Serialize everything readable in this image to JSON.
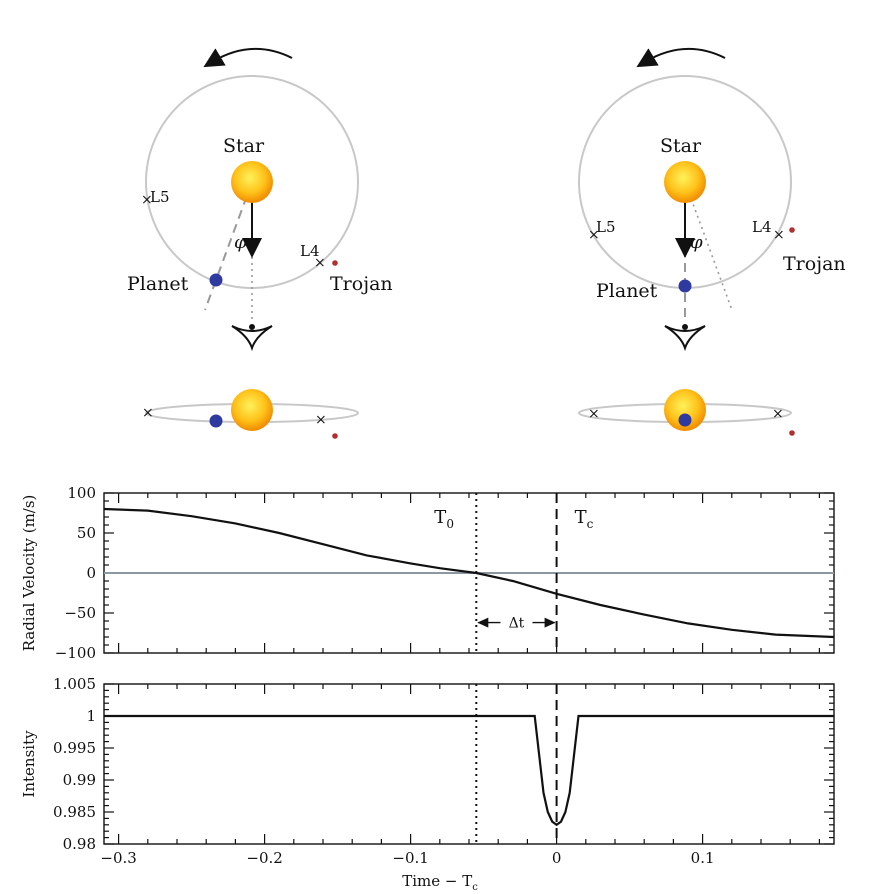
{
  "diagram": {
    "left": {
      "star_label": "Star",
      "planet_label": "Planet",
      "trojan_label": "Trojan",
      "l4_label": "L4",
      "l5_label": "L5",
      "phi_label": "φ"
    },
    "right": {
      "star_label": "Star",
      "planet_label": "Planet",
      "trojan_label": "Trojan",
      "l4_label": "L4",
      "l5_label": "L5",
      "phi_label": "φ"
    },
    "colors": {
      "star": "#f5a800",
      "planet": "#2f3aa0",
      "trojan": "#b03030",
      "orbit": "#c8c8c8"
    }
  },
  "chart_data": [
    {
      "type": "line",
      "ylabel": "Radial Velocity (m/s)",
      "xlim": [
        -0.31,
        0.19
      ],
      "ylim": [
        -100,
        100
      ],
      "yticks": [
        -100,
        -50,
        0,
        50,
        100
      ],
      "yticklabels": [
        "−100",
        "−50",
        "0",
        "50",
        "100"
      ],
      "annotations": {
        "t0": "T",
        "t0_sub": "0",
        "tc": "T",
        "tc_sub": "c",
        "dt": "Δt"
      },
      "markers": {
        "t0": -0.055,
        "tc": 0.0
      },
      "series": [
        {
          "x": [
            -0.31,
            -0.28,
            -0.25,
            -0.22,
            -0.19,
            -0.16,
            -0.13,
            -0.1,
            -0.08,
            -0.055,
            -0.03,
            0.0,
            0.03,
            0.06,
            0.09,
            0.12,
            0.15,
            0.19
          ],
          "y": [
            80,
            78,
            71,
            62,
            50,
            36,
            22,
            12,
            6,
            0,
            -10,
            -26,
            -40,
            -52,
            -63,
            -71,
            -77,
            -80
          ]
        }
      ]
    },
    {
      "type": "line",
      "xlabel": "Time − T",
      "xlabel_sub": "c",
      "ylabel": "Intensity",
      "xlim": [
        -0.31,
        0.19
      ],
      "ylim": [
        0.98,
        1.005
      ],
      "yticks": [
        0.98,
        0.985,
        0.99,
        0.995,
        1,
        1.005
      ],
      "yticklabels": [
        "0.98",
        "0.985",
        "0.99",
        "0.995",
        "1",
        "1.005"
      ],
      "xticks": [
        -0.3,
        -0.2,
        -0.1,
        0,
        0.1
      ],
      "xticklabels": [
        "−0.3",
        "−0.2",
        "−0.1",
        "0",
        "0.1"
      ],
      "markers": {
        "t0": -0.055,
        "tc": 0.0
      },
      "series": [
        {
          "x": [
            -0.31,
            -0.015,
            -0.012,
            -0.009,
            -0.006,
            -0.003,
            0.0,
            0.003,
            0.006,
            0.009,
            0.012,
            0.015,
            0.19
          ],
          "y": [
            1.0,
            1.0,
            0.994,
            0.988,
            0.985,
            0.9835,
            0.983,
            0.9835,
            0.985,
            0.988,
            0.994,
            1.0,
            1.0
          ]
        }
      ]
    }
  ]
}
